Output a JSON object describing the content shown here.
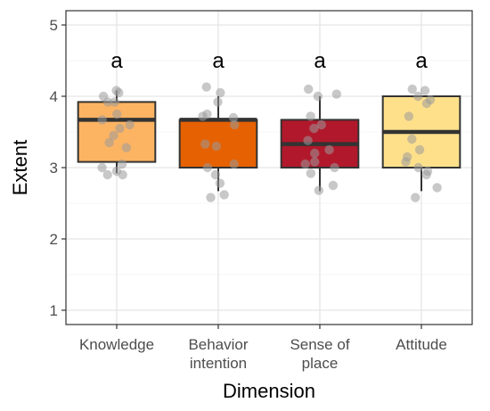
{
  "chart_data": {
    "type": "boxplot",
    "xlabel": "Dimension",
    "ylabel": "Extent",
    "ylim": [
      0.8,
      5.2
    ],
    "yticks": [
      1,
      2,
      3,
      4,
      5
    ],
    "grid": true,
    "legend": "none",
    "categories": [
      {
        "label_lines": [
          "Knowledge"
        ],
        "color": "#FDB462",
        "letter": "a",
        "q1": 3.08,
        "median": 3.67,
        "q3": 3.92,
        "whisker_low": 2.92,
        "whisker_high": 4.08,
        "points": [
          4.08,
          4.05,
          4.0,
          3.92,
          3.92,
          3.75,
          3.67,
          3.6,
          3.55,
          3.45,
          3.35,
          3.28,
          3.05,
          3.0,
          2.95,
          2.9,
          2.9
        ]
      },
      {
        "label_lines": [
          "Behavior",
          "intention"
        ],
        "color": "#E66101",
        "letter": "a",
        "q1": 3.0,
        "median": 3.67,
        "q3": 3.67,
        "whisker_low": 2.67,
        "whisker_high": 4.0,
        "points": [
          4.13,
          4.05,
          3.92,
          3.75,
          3.72,
          3.7,
          3.6,
          3.33,
          3.3,
          3.05,
          3.0,
          2.9,
          2.78,
          2.62,
          2.58
        ]
      },
      {
        "label_lines": [
          "Sense of",
          "place"
        ],
        "color": "#B2182B",
        "letter": "a",
        "q1": 3.0,
        "median": 3.33,
        "q3": 3.67,
        "whisker_low": 2.67,
        "whisker_high": 4.0,
        "points": [
          4.1,
          4.03,
          4.0,
          3.72,
          3.6,
          3.55,
          3.38,
          3.25,
          3.2,
          3.08,
          3.05,
          3.0,
          2.92,
          2.75,
          2.68
        ]
      },
      {
        "label_lines": [
          "Attitude"
        ],
        "color": "#FEE08B",
        "letter": "a",
        "q1": 3.0,
        "median": 3.5,
        "q3": 4.0,
        "whisker_low": 2.67,
        "whisker_high": 4.0,
        "points": [
          4.1,
          4.08,
          4.0,
          3.95,
          3.9,
          3.72,
          3.4,
          3.25,
          3.15,
          3.08,
          3.0,
          2.95,
          2.9,
          2.72,
          2.58
        ]
      }
    ]
  }
}
